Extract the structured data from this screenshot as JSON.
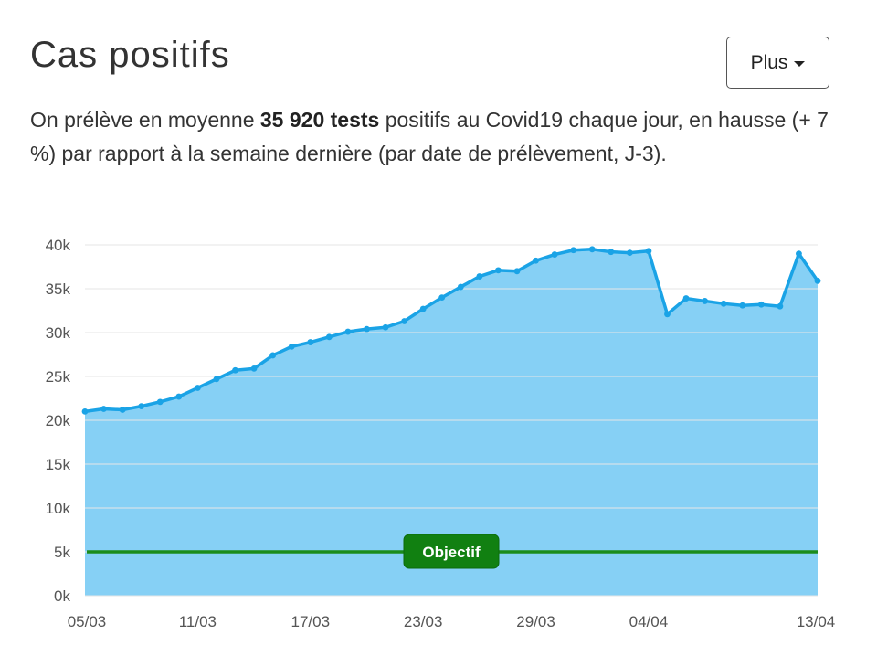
{
  "header": {
    "title": "Cas positifs",
    "more_button": "Plus",
    "summary_intro": "On prélève en moyenne ",
    "summary_bold": "35 920 tests",
    "summary_rest": " positifs au Covid19 chaque jour, en hausse (+ 7 %) par rapport à la semaine dernière (par date de prélèvement, J-3)."
  },
  "colors": {
    "area_fill": "#86d0f5",
    "line": "#1aa3e6",
    "grid": "#e6e6e6",
    "objective_line": "#1b8c1b",
    "objective_label_bg": "#118011"
  },
  "chart_data": {
    "type": "area",
    "xlabel": "",
    "ylabel": "",
    "ylim": [
      0,
      40000
    ],
    "ytick_values": [
      0,
      5000,
      10000,
      15000,
      20000,
      25000,
      30000,
      35000,
      40000
    ],
    "ytick_labels": [
      "0k",
      "5k",
      "10k",
      "15k",
      "20k",
      "25k",
      "30k",
      "35k",
      "40k"
    ],
    "xtick_labels": [
      "05/03",
      "11/03",
      "17/03",
      "23/03",
      "29/03",
      "04/04",
      "13/04"
    ],
    "xtick_index": [
      0,
      6,
      12,
      18,
      24,
      30,
      39
    ],
    "grid": true,
    "series": [
      {
        "values": [
          21000,
          21300,
          21200,
          21600,
          22100,
          22700,
          23700,
          24700,
          25700,
          25900,
          27400,
          28400,
          28900,
          29500,
          30100,
          30400,
          30600,
          31300,
          32700,
          34000,
          35200,
          36400,
          37100,
          37000,
          38200,
          38900,
          39400,
          39500,
          39200,
          39100,
          39300,
          32100,
          33900,
          33600,
          33300,
          33100,
          33200,
          33000,
          39000,
          35900
        ]
      }
    ],
    "objective": {
      "label": "Objectif",
      "value": 5000
    }
  }
}
